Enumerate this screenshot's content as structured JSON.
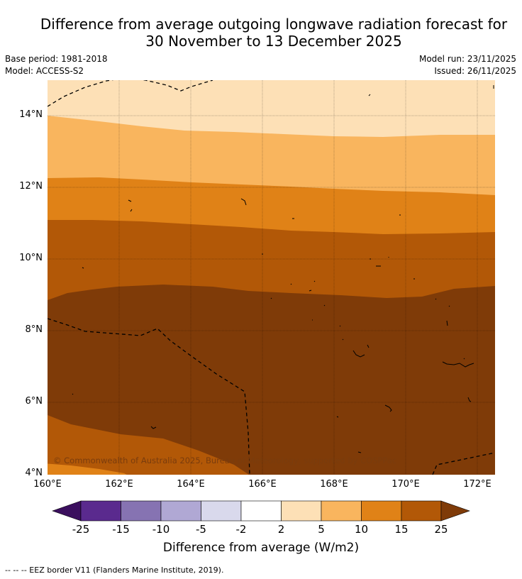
{
  "title": {
    "line1": "Difference from average outgoing longwave radiation forecast for",
    "line2": "30 November to 13 December 2025"
  },
  "meta": {
    "base_period": "Base period: 1981-2018",
    "model": "Model: ACCESS-S2",
    "model_run": "Model run: 23/11/2025",
    "issued": "Issued: 26/11/2025"
  },
  "map": {
    "lat_labels": [
      "14°N",
      "12°N",
      "10°N",
      "8°N",
      "6°N",
      "4°N"
    ],
    "lon_labels": [
      "160°E",
      "162°E",
      "164°E",
      "166°E",
      "168°E",
      "170°E",
      "172°E"
    ],
    "copyright": "© Commonwealth of Australia 2025, Bureau of Meteorology, supported by COSPPac"
  },
  "colorbar": {
    "ticks": [
      "-25",
      "-15",
      "-10",
      "-5",
      "-2",
      "2",
      "5",
      "10",
      "15",
      "25"
    ],
    "colors": {
      "lt_-25": "#3b0f5e",
      "-25_-15": "#5a2a8e",
      "-15_-10": "#8673b2",
      "-10_-5": "#b0a8d4",
      "-5_-2": "#d9d9ec",
      "-2_2": "#ffffff",
      "2_5": "#fde0b6",
      "5_10": "#f9b55e",
      "10_15": "#e08217",
      "15_25": "#b25807",
      "gt_25": "#7f3b08"
    },
    "title": "Difference from average (W/m2)"
  },
  "footer": {
    "legend": "--  --  -- EEZ border V11 (Flanders Marine Institute, 2019)."
  }
}
